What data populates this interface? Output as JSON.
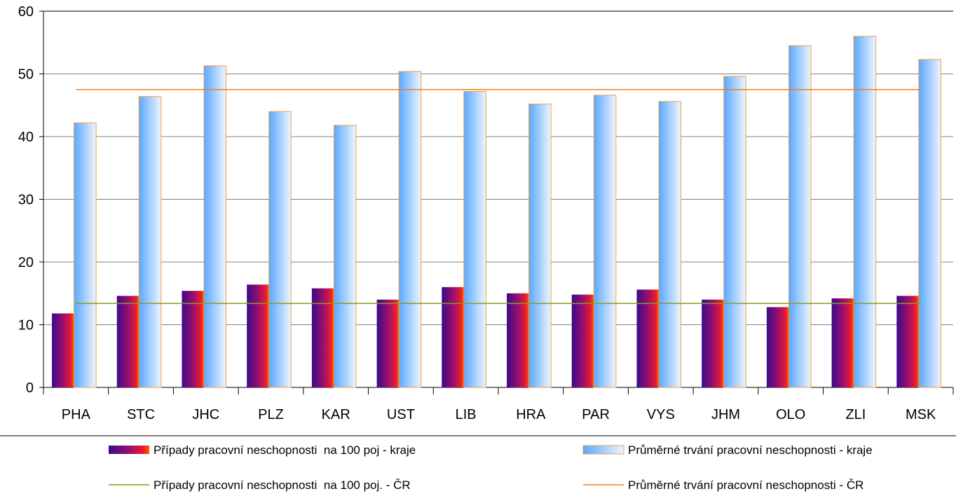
{
  "chart_data": {
    "type": "bar",
    "ylim": [
      0,
      60
    ],
    "yticks": [
      0,
      10,
      20,
      30,
      40,
      50,
      60
    ],
    "grid": true,
    "legend_position": "bottom",
    "categories": [
      "PHA",
      "STC",
      "JHC",
      "PLZ",
      "KAR",
      "UST",
      "LIB",
      "HRA",
      "PAR",
      "VYS",
      "JHM",
      "OLO",
      "ZLI",
      "MSK"
    ],
    "series": [
      {
        "name": "Případy pracovní neschopnosti  na 100 poj - kraje",
        "kind": "bar",
        "values": [
          11.8,
          14.6,
          15.4,
          16.4,
          15.8,
          14.0,
          16.0,
          15.0,
          14.8,
          15.6,
          14.0,
          12.8,
          14.2,
          14.6
        ]
      },
      {
        "name": "Průměrné trvání pracovní neschopnosti - kraje",
        "kind": "bar",
        "values": [
          42.2,
          46.4,
          51.3,
          44.0,
          41.8,
          50.4,
          47.2,
          45.2,
          46.6,
          45.6,
          49.6,
          54.5,
          56.0,
          52.3
        ]
      },
      {
        "name": "Případy pracovní neschopnosti  na 100 poj. - ČR",
        "kind": "line",
        "value": 13.4
      },
      {
        "name": "Průměrné trvání pracovní neschopnosti - ČR",
        "kind": "line",
        "value": 47.5
      }
    ],
    "colors": {
      "bar1_dark": "#3a0a8c",
      "bar1_mid": "#a0106a",
      "bar1_light": "#ff2a00",
      "bar2_dark": "#5aa8ff",
      "bar2_light": "#eaf3ff",
      "bar2_stroke": "#f0a040",
      "line_cr_cases": "#8a9a20",
      "line_cr_duration": "#f08020",
      "grid": "#808080"
    }
  }
}
